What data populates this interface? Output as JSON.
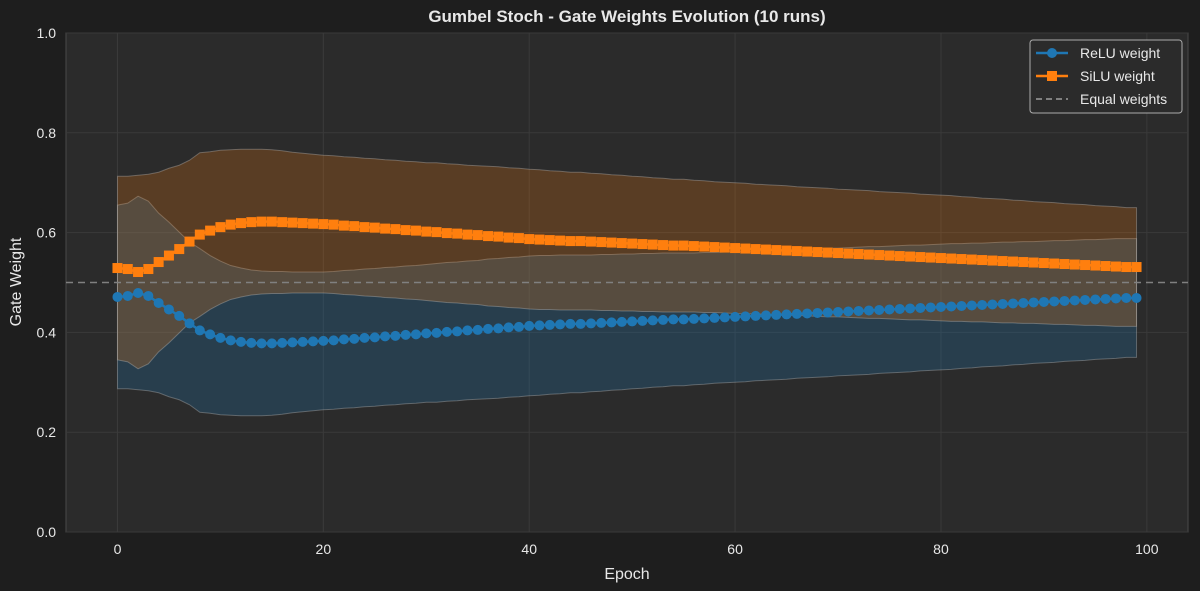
{
  "chart_data": {
    "type": "line",
    "title": "Gumbel Stoch - Gate Weights Evolution (10 runs)",
    "xlabel": "Epoch",
    "ylabel": "Gate Weight",
    "xlim": [
      -5,
      104
    ],
    "ylim": [
      0.0,
      1.0
    ],
    "xticks": [
      "0",
      "20",
      "40",
      "60",
      "80",
      "100"
    ],
    "yticks": [
      "0.0",
      "0.2",
      "0.4",
      "0.6",
      "0.8",
      "1.0"
    ],
    "grid": true,
    "legend_position": "top-right",
    "reference_line": {
      "name": "Equal weights",
      "y": 0.5,
      "color": "#808080"
    },
    "series": [
      {
        "name": "ReLU weight",
        "color": "#1f77b4",
        "marker": "circle",
        "values": [
          0.471,
          0.473,
          0.479,
          0.473,
          0.459,
          0.446,
          0.433,
          0.418,
          0.404,
          0.396,
          0.389,
          0.384,
          0.381,
          0.379,
          0.378,
          0.378,
          0.379,
          0.38,
          0.381,
          0.382,
          0.383,
          0.384,
          0.386,
          0.387,
          0.389,
          0.39,
          0.392,
          0.393,
          0.395,
          0.396,
          0.398,
          0.399,
          0.401,
          0.402,
          0.404,
          0.405,
          0.407,
          0.408,
          0.41,
          0.411,
          0.413,
          0.414,
          0.415,
          0.416,
          0.417,
          0.417,
          0.418,
          0.419,
          0.42,
          0.421,
          0.422,
          0.423,
          0.424,
          0.425,
          0.426,
          0.426,
          0.427,
          0.428,
          0.429,
          0.43,
          0.431,
          0.432,
          0.433,
          0.434,
          0.435,
          0.436,
          0.437,
          0.438,
          0.439,
          0.44,
          0.441,
          0.442,
          0.443,
          0.444,
          0.445,
          0.446,
          0.447,
          0.448,
          0.449,
          0.45,
          0.451,
          0.452,
          0.453,
          0.454,
          0.455,
          0.456,
          0.457,
          0.458,
          0.459,
          0.46,
          0.461,
          0.462,
          0.463,
          0.464,
          0.465,
          0.466,
          0.467,
          0.468,
          0.469,
          0.469
        ]
      },
      {
        "name": "SiLU weight",
        "color": "#ff7f0e",
        "marker": "square",
        "values": [
          0.529,
          0.527,
          0.521,
          0.527,
          0.541,
          0.554,
          0.567,
          0.582,
          0.596,
          0.604,
          0.611,
          0.616,
          0.619,
          0.621,
          0.622,
          0.622,
          0.621,
          0.62,
          0.619,
          0.618,
          0.617,
          0.616,
          0.614,
          0.613,
          0.611,
          0.61,
          0.608,
          0.607,
          0.605,
          0.604,
          0.602,
          0.601,
          0.599,
          0.598,
          0.596,
          0.595,
          0.593,
          0.592,
          0.59,
          0.589,
          0.587,
          0.586,
          0.585,
          0.584,
          0.583,
          0.583,
          0.582,
          0.581,
          0.58,
          0.579,
          0.578,
          0.577,
          0.576,
          0.575,
          0.574,
          0.574,
          0.573,
          0.572,
          0.571,
          0.57,
          0.569,
          0.568,
          0.567,
          0.566,
          0.565,
          0.564,
          0.563,
          0.562,
          0.561,
          0.56,
          0.559,
          0.558,
          0.557,
          0.556,
          0.555,
          0.554,
          0.553,
          0.552,
          0.551,
          0.55,
          0.549,
          0.548,
          0.547,
          0.546,
          0.545,
          0.544,
          0.543,
          0.542,
          0.541,
          0.54,
          0.539,
          0.538,
          0.537,
          0.536,
          0.535,
          0.534,
          0.533,
          0.532,
          0.531,
          0.531
        ]
      }
    ],
    "std": [
      0.184,
      0.186,
      0.194,
      0.19,
      0.18,
      0.175,
      0.168,
      0.163,
      0.164,
      0.158,
      0.154,
      0.15,
      0.148,
      0.146,
      0.145,
      0.144,
      0.143,
      0.141,
      0.14,
      0.139,
      0.138,
      0.138,
      0.138,
      0.138,
      0.138,
      0.138,
      0.138,
      0.138,
      0.138,
      0.138,
      0.138,
      0.139,
      0.139,
      0.139,
      0.139,
      0.139,
      0.14,
      0.14,
      0.14,
      0.14,
      0.14,
      0.14,
      0.139,
      0.139,
      0.138,
      0.138,
      0.137,
      0.137,
      0.136,
      0.136,
      0.135,
      0.135,
      0.134,
      0.134,
      0.133,
      0.133,
      0.132,
      0.132,
      0.131,
      0.131,
      0.131,
      0.131,
      0.13,
      0.13,
      0.13,
      0.13,
      0.129,
      0.129,
      0.129,
      0.129,
      0.128,
      0.128,
      0.128,
      0.128,
      0.127,
      0.127,
      0.127,
      0.127,
      0.126,
      0.126,
      0.126,
      0.126,
      0.125,
      0.125,
      0.124,
      0.124,
      0.124,
      0.123,
      0.123,
      0.122,
      0.122,
      0.122,
      0.121,
      0.121,
      0.121,
      0.12,
      0.12,
      0.12,
      0.119,
      0.119
    ]
  }
}
